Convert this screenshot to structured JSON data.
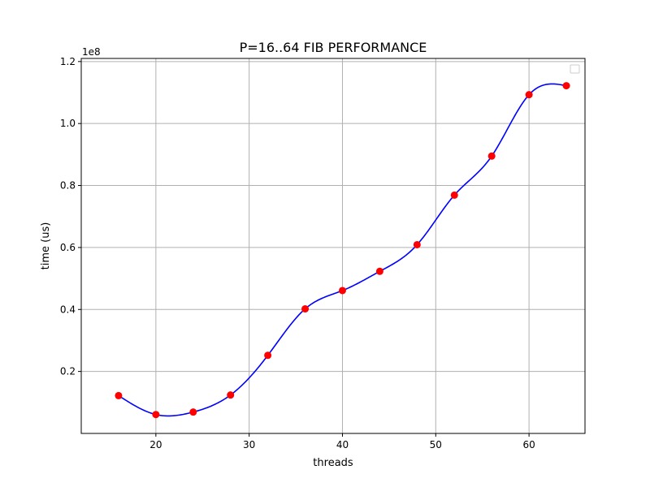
{
  "chart_data": {
    "type": "line",
    "title": "P=16..64 FIB PERFORMANCE",
    "xlabel": "threads",
    "ylabel": "time (us)",
    "y_offset_label": "1e8",
    "xlim": [
      12,
      66
    ],
    "ylim": [
      0.0,
      1.21
    ],
    "xticks": [
      20,
      30,
      40,
      50,
      60
    ],
    "yticks": [
      0.2,
      0.4,
      0.6,
      0.8,
      1.0,
      1.2
    ],
    "ytick_labels": [
      "0.2",
      "0.4",
      "0.6",
      "0.8",
      "1.0",
      "1.2"
    ],
    "grid": true,
    "legend": {
      "placement": "top-right",
      "entries": []
    },
    "series": [
      {
        "kind": "scatter",
        "color": "#ff0000",
        "x": [
          16,
          20,
          24,
          28,
          32,
          36,
          40,
          44,
          48,
          52,
          56,
          60,
          64
        ],
        "y": [
          0.122,
          0.061,
          0.069,
          0.124,
          0.252,
          0.402,
          0.461,
          0.523,
          0.609,
          0.769,
          0.895,
          1.093,
          1.122
        ]
      },
      {
        "kind": "line",
        "color": "#0000ff",
        "x": [
          16,
          20,
          24,
          28,
          32,
          36,
          40,
          44,
          48,
          52,
          56,
          60,
          64
        ],
        "y": [
          0.122,
          0.061,
          0.069,
          0.124,
          0.252,
          0.402,
          0.461,
          0.523,
          0.609,
          0.769,
          0.895,
          1.093,
          1.122
        ]
      }
    ]
  }
}
